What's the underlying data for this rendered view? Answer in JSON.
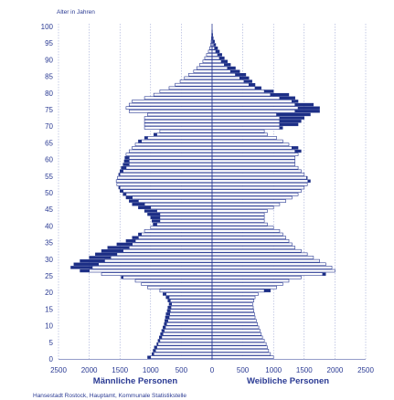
{
  "chart_data": {
    "type": "bar",
    "orientation": "population-pyramid",
    "ylabel": "Alter in Jahren",
    "xlabel_left": "Männliche Personen",
    "xlabel_right": "Weibliche Personen",
    "source": "Hansestadt Rostock, Hauptamt, Kommunale Statistikstelle",
    "xlim": [
      -2500,
      2500
    ],
    "ylim": [
      0,
      100
    ],
    "x_ticks": [
      "2500",
      "2000",
      "1500",
      "1000",
      "500",
      "0",
      "500",
      "1000",
      "1500",
      "2000",
      "2500"
    ],
    "y_ticks": [
      "0",
      "5",
      "10",
      "15",
      "20",
      "25",
      "30",
      "35",
      "40",
      "45",
      "50",
      "55",
      "60",
      "65",
      "70",
      "75",
      "80",
      "85",
      "90",
      "95",
      "100"
    ],
    "grid": true,
    "colors": {
      "line": "#2a3a93",
      "surplus": "#1c2e86",
      "bar_fill": "#ffffff",
      "grid": "#8c97cc"
    },
    "series": [
      {
        "name": "Männliche Personen",
        "side": "left",
        "ages": [
          0,
          1,
          2,
          3,
          4,
          5,
          6,
          7,
          8,
          9,
          10,
          11,
          12,
          13,
          14,
          15,
          16,
          17,
          18,
          19,
          20,
          21,
          22,
          23,
          24,
          25,
          26,
          27,
          28,
          29,
          30,
          31,
          32,
          33,
          34,
          35,
          36,
          37,
          38,
          39,
          40,
          41,
          42,
          43,
          44,
          45,
          46,
          47,
          48,
          49,
          50,
          51,
          52,
          53,
          54,
          55,
          56,
          57,
          58,
          59,
          60,
          61,
          62,
          63,
          64,
          65,
          66,
          67,
          68,
          69,
          70,
          71,
          72,
          73,
          74,
          75,
          76,
          77,
          78,
          79,
          80,
          81,
          82,
          83,
          84,
          85,
          86,
          87,
          88,
          89,
          90,
          91,
          92,
          93,
          94,
          95,
          96,
          97,
          98
        ],
        "values": [
          1050,
          980,
          960,
          940,
          900,
          880,
          860,
          840,
          820,
          800,
          780,
          770,
          760,
          750,
          730,
          720,
          700,
          720,
          750,
          800,
          850,
          1050,
          1150,
          1250,
          1480,
          1800,
          2150,
          2300,
          2250,
          2150,
          2000,
          1900,
          1800,
          1700,
          1550,
          1400,
          1300,
          1200,
          1100,
          1000,
          960,
          980,
          1000,
          1050,
          1100,
          1200,
          1300,
          1350,
          1400,
          1450,
          1500,
          1520,
          1550,
          1560,
          1540,
          1520,
          1500,
          1480,
          1450,
          1430,
          1420,
          1400,
          1350,
          1300,
          1250,
          1200,
          1100,
          950,
          850,
          1100,
          1100,
          1100,
          1100,
          1050,
          1350,
          1400,
          1350,
          1300,
          1100,
          950,
          850,
          700,
          600,
          520,
          450,
          380,
          300,
          250,
          200,
          150,
          120,
          90,
          60,
          40,
          25,
          15,
          10,
          6,
          3
        ]
      },
      {
        "name": "Weibliche Personen",
        "side": "right",
        "ages": [
          0,
          1,
          2,
          3,
          4,
          5,
          6,
          7,
          8,
          9,
          10,
          11,
          12,
          13,
          14,
          15,
          16,
          17,
          18,
          19,
          20,
          21,
          22,
          23,
          24,
          25,
          26,
          27,
          28,
          29,
          30,
          31,
          32,
          33,
          34,
          35,
          36,
          37,
          38,
          39,
          40,
          41,
          42,
          43,
          44,
          45,
          46,
          47,
          48,
          49,
          50,
          51,
          52,
          53,
          54,
          55,
          56,
          57,
          58,
          59,
          60,
          61,
          62,
          63,
          64,
          65,
          66,
          67,
          68,
          69,
          70,
          71,
          72,
          73,
          74,
          75,
          76,
          77,
          78,
          79,
          80,
          81,
          82,
          83,
          84,
          85,
          86,
          87,
          88,
          89,
          90,
          91,
          92,
          93,
          94,
          95,
          96,
          97,
          98
        ],
        "values": [
          1000,
          950,
          920,
          900,
          880,
          850,
          820,
          800,
          780,
          760,
          740,
          720,
          700,
          690,
          680,
          670,
          660,
          680,
          700,
          750,
          950,
          1050,
          1150,
          1250,
          1450,
          1850,
          2000,
          1950,
          1850,
          1750,
          1650,
          1550,
          1450,
          1350,
          1300,
          1250,
          1200,
          1150,
          1100,
          1000,
          900,
          850,
          850,
          850,
          900,
          1000,
          1100,
          1200,
          1300,
          1400,
          1450,
          1500,
          1550,
          1600,
          1550,
          1500,
          1450,
          1400,
          1350,
          1350,
          1350,
          1400,
          1450,
          1400,
          1250,
          1150,
          1050,
          900,
          850,
          1150,
          1400,
          1450,
          1500,
          1600,
          1750,
          1750,
          1650,
          1400,
          1350,
          1250,
          1000,
          800,
          700,
          650,
          600,
          550,
          450,
          380,
          300,
          250,
          200,
          160,
          120,
          90,
          60,
          40,
          20,
          10,
          5
        ]
      }
    ]
  }
}
